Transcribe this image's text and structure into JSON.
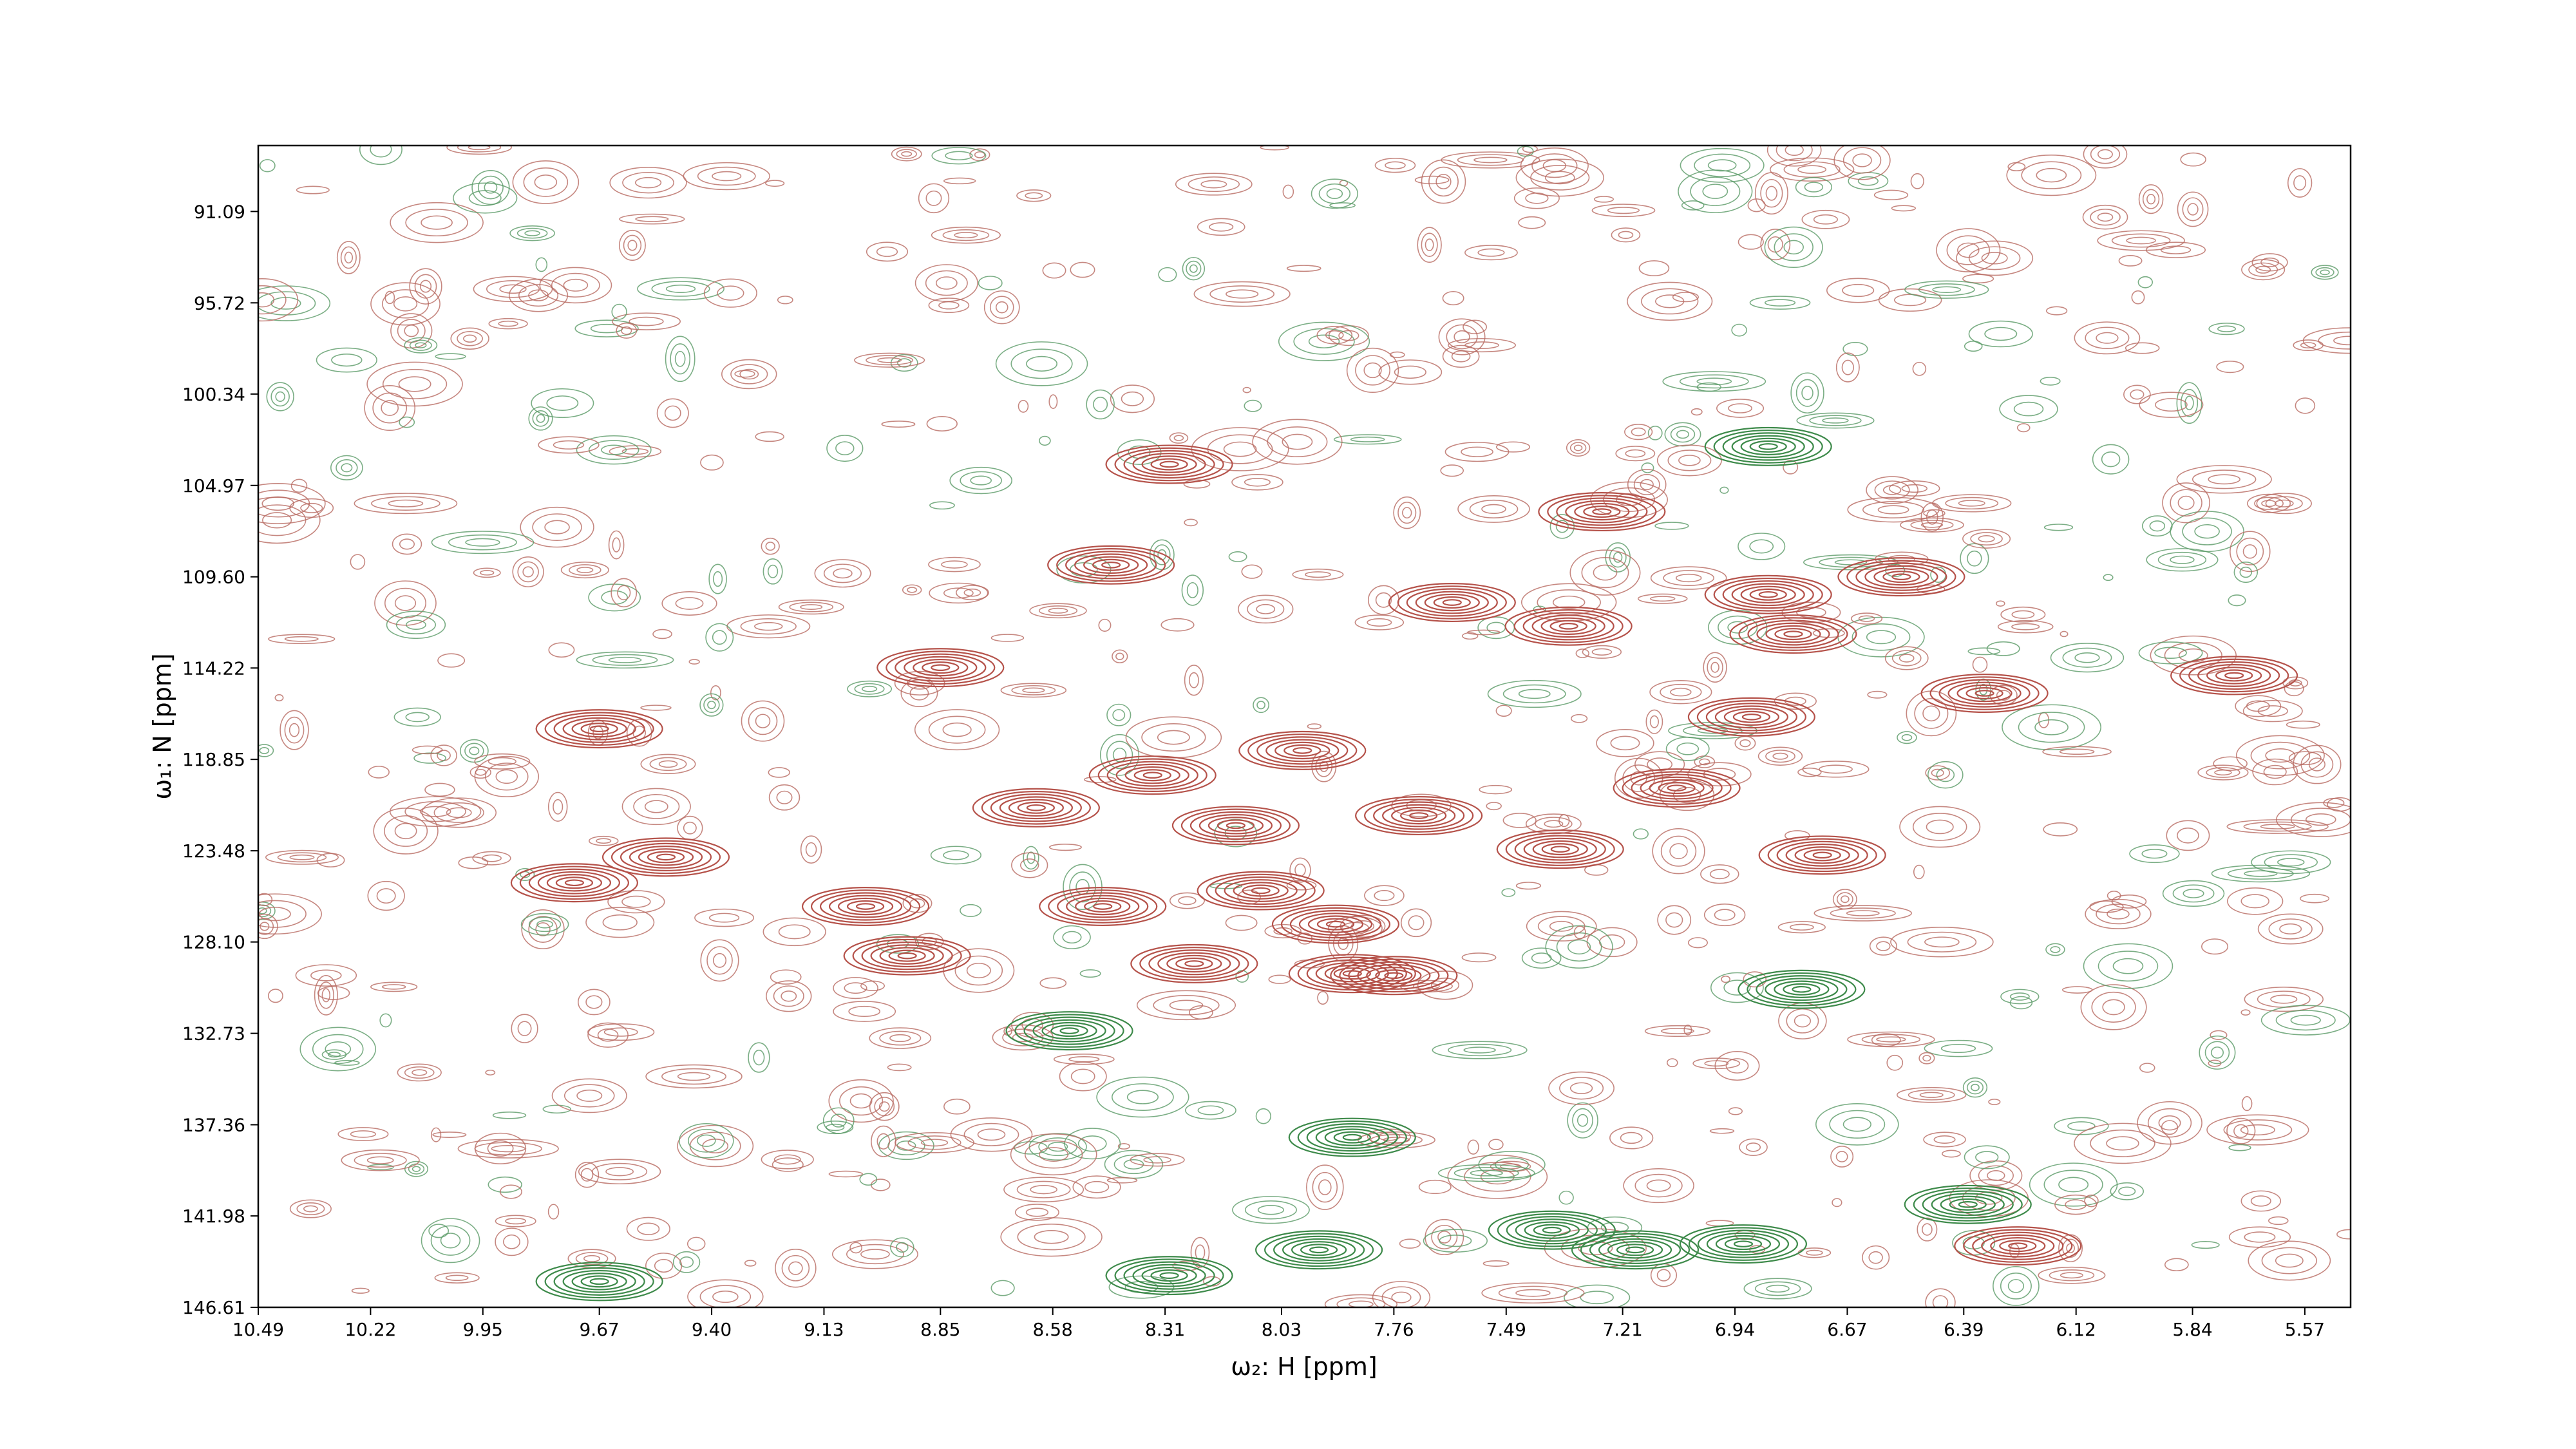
{
  "chart_data": {
    "type": "contour",
    "xlabel": "ω₂: H [ppm]",
    "ylabel": "ω₁: N [ppm]",
    "xlim": [
      10.49,
      5.46
    ],
    "ylim": [
      146.61,
      87.75
    ],
    "xticks": [
      10.49,
      10.22,
      9.95,
      9.67,
      {
        "value": 9.4,
        "label": "9.40"
      },
      9.13,
      8.85,
      8.58,
      8.31,
      8.03,
      7.76,
      7.49,
      7.21,
      6.94,
      6.67,
      6.39,
      6.12,
      5.84,
      5.57
    ],
    "yticks": [
      91.09,
      95.72,
      100.34,
      104.97,
      {
        "value": 109.6,
        "label": "109.60"
      },
      114.22,
      118.85,
      123.48,
      {
        "value": 128.1,
        "label": "128.10"
      },
      132.73,
      137.36,
      141.98,
      146.61
    ],
    "series": [
      {
        "color": "#b5524a",
        "x": [
          8.3,
          7.26,
          8.44,
          6.54,
          6.86,
          7.62,
          7.34,
          6.8,
          8.85,
          6.34,
          5.74,
          9.67,
          6.9,
          7.08,
          8.34,
          7.98,
          8.62,
          8.14,
          7.7,
          9.51,
          9.73,
          7.36,
          6.73,
          9.03,
          8.93,
          8.46,
          8.08,
          7.9,
          7.76,
          8.24,
          7.86,
          6.26
        ],
        "y": [
          103.9,
          106.3,
          109.0,
          109.6,
          110.5,
          110.9,
          112.1,
          112.5,
          114.2,
          115.5,
          114.6,
          117.3,
          116.7,
          120.3,
          119.65,
          118.4,
          121.3,
          122.2,
          121.7,
          123.8,
          125.1,
          123.4,
          123.7,
          126.3,
          128.8,
          126.3,
          125.5,
          127.2,
          129.8,
          129.2,
          129.7,
          143.5
        ]
      },
      {
        "color": "#3d8a4a",
        "x": [
          7.86,
          9.67,
          8.3,
          7.94,
          7.38,
          7.18,
          6.92,
          6.38,
          6.78,
          8.54,
          6.86
        ],
        "y": [
          138.0,
          145.3,
          145.0,
          143.7,
          142.7,
          143.7,
          143.4,
          141.4,
          130.5,
          132.6,
          103.0
        ]
      }
    ]
  }
}
